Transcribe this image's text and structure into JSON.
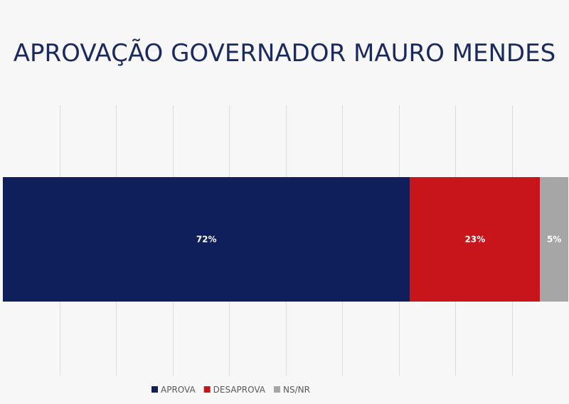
{
  "chart_data": {
    "type": "bar",
    "orientation": "horizontal",
    "stacked": true,
    "title": "APROVAÇÃO GOVERNADOR MAURO MENDES",
    "categories": [
      ""
    ],
    "series": [
      {
        "name": "APROVA",
        "values": [
          72
        ],
        "label": "72%",
        "color": "#0e1f5b"
      },
      {
        "name": "DESAPROVA",
        "values": [
          23
        ],
        "label": "23%",
        "color": "#c8141b"
      },
      {
        "name": "NS/NR",
        "values": [
          5
        ],
        "label": "5%",
        "color": "#a6a6a6"
      }
    ],
    "xlim": [
      0,
      100
    ],
    "grid": true,
    "legend_position": "bottom"
  },
  "colors": {
    "title": "#1a2a5e",
    "grid": "#dcdcdc",
    "background": "#f7f7f7"
  }
}
